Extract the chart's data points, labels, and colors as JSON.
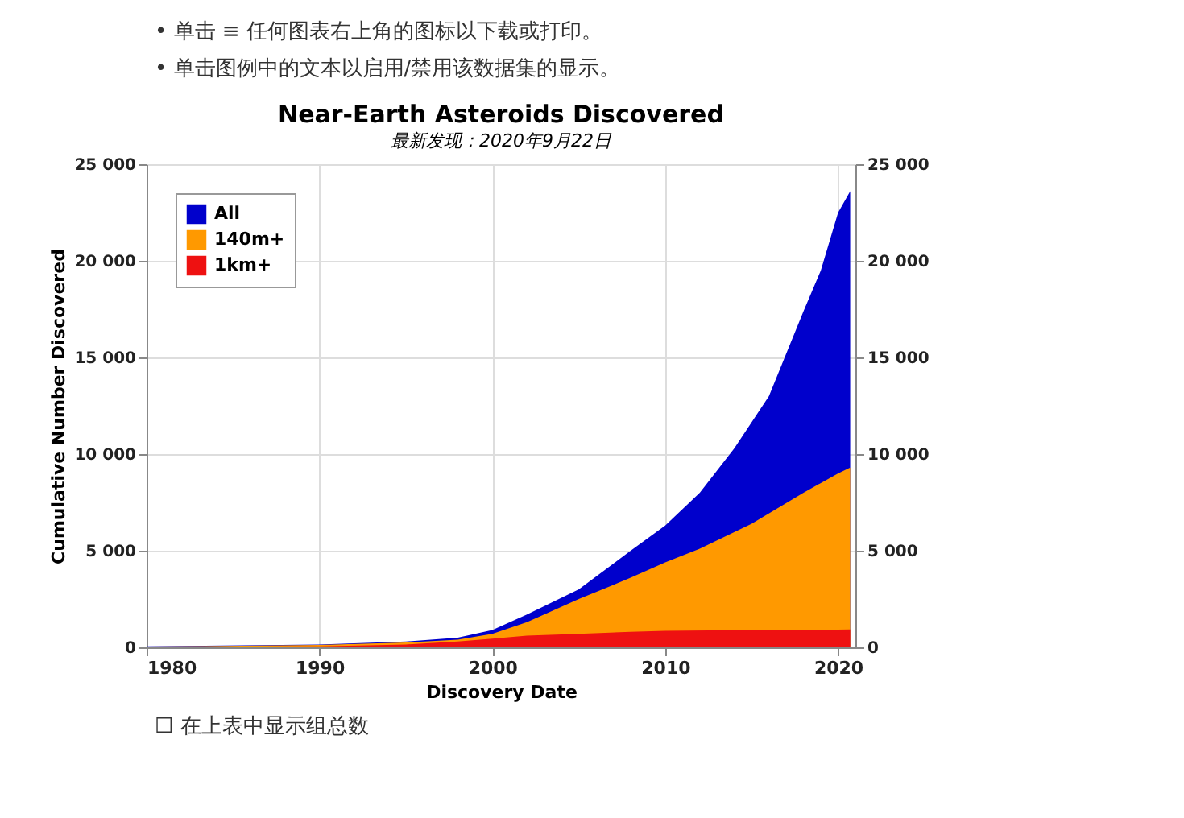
{
  "chart_data": {
    "type": "area",
    "title": "Near-Earth Asteroids Discovered",
    "subtitle": "最新发现：2020年9月22日",
    "xlabel": "Discovery Date",
    "ylabel": "Cumulative Number Discovered",
    "annotations": [
      "• 单击 ≡ 任何图表右上角的图标以下载或打印。",
      "• 单击图例中的文本以启用/禁用该数据集的显示。",
      "☐ 在上表中显示组总数"
    ],
    "xlim": [
      1980,
      2021
    ],
    "xticks": [
      1980,
      1990,
      2000,
      2010,
      2020
    ],
    "ylim": [
      0,
      25000
    ],
    "yticks": [
      {
        "value": 0,
        "label": "0"
      },
      {
        "value": 5000,
        "label": "5 000"
      },
      {
        "value": 10000,
        "label": "10 000"
      },
      {
        "value": 15000,
        "label": "15 000"
      },
      {
        "value": 20000,
        "label": "20 000"
      },
      {
        "value": 25000,
        "label": "25 000"
      }
    ],
    "y2lim": [
      0,
      25000
    ],
    "y2ticks": [
      {
        "value": 0,
        "label": "0"
      },
      {
        "value": 5000,
        "label": "5 000"
      },
      {
        "value": 10000,
        "label": "10 000"
      },
      {
        "value": 15000,
        "label": "15 000"
      },
      {
        "value": 20000,
        "label": "20 000"
      },
      {
        "value": 25000,
        "label": "25 000"
      }
    ],
    "grid": true,
    "legend": "top left",
    "series": [
      {
        "name": "All",
        "color": "#0000cc",
        "x": [
          1980,
          1990,
          1995,
          1998,
          2000,
          2002,
          2005,
          2008,
          2010,
          2012,
          2014,
          2016,
          2018,
          2019,
          2020,
          2020.7
        ],
        "values": [
          50,
          150,
          300,
          500,
          900,
          1700,
          3000,
          5000,
          6300,
          8000,
          10300,
          13000,
          17400,
          19500,
          22500,
          23600
        ]
      },
      {
        "name": "140m+",
        "color": "#ff9900",
        "x": [
          1980,
          1990,
          1995,
          1998,
          2000,
          2002,
          2005,
          2008,
          2010,
          2012,
          2015,
          2018,
          2020,
          2020.7
        ],
        "values": [
          40,
          120,
          250,
          400,
          700,
          1300,
          2500,
          3600,
          4400,
          5100,
          6400,
          8000,
          9000,
          9300
        ]
      },
      {
        "name": "1km+",
        "color": "#ee1111",
        "x": [
          1980,
          1990,
          1995,
          1998,
          2000,
          2002,
          2005,
          2008,
          2010,
          2015,
          2020,
          2020.7
        ],
        "values": [
          20,
          50,
          150,
          300,
          450,
          600,
          700,
          800,
          850,
          900,
          920,
          930
        ]
      }
    ]
  }
}
